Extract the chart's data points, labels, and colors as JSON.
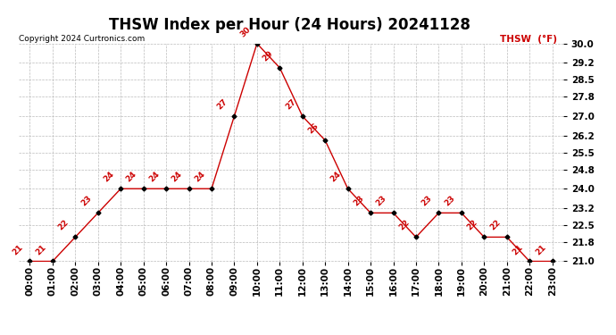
{
  "title": "THSW Index per Hour (24 Hours) 20241128",
  "copyright": "Copyright 2024 Curtronics.com",
  "legend_label": "THSW  (°F)",
  "hours": [
    "00:00",
    "01:00",
    "02:00",
    "03:00",
    "04:00",
    "05:00",
    "06:00",
    "07:00",
    "08:00",
    "09:00",
    "10:00",
    "11:00",
    "12:00",
    "13:00",
    "14:00",
    "15:00",
    "16:00",
    "17:00",
    "18:00",
    "19:00",
    "20:00",
    "21:00",
    "22:00",
    "23:00"
  ],
  "values": [
    21,
    21,
    22,
    23,
    24,
    24,
    24,
    24,
    24,
    27,
    30,
    29,
    27,
    26,
    24,
    23,
    23,
    22,
    23,
    23,
    22,
    22,
    21,
    21
  ],
  "line_color": "#cc0000",
  "marker_color": "#000000",
  "label_color": "#cc0000",
  "background_color": "#ffffff",
  "grid_color": "#bbbbbb",
  "title_color": "#000000",
  "copyright_color": "#000000",
  "legend_color": "#cc0000",
  "ylim_min": 21.0,
  "ylim_max": 30.0,
  "yticks": [
    21.0,
    21.8,
    22.5,
    23.2,
    24.0,
    24.8,
    25.5,
    26.2,
    27.0,
    27.8,
    28.5,
    29.2,
    30.0
  ],
  "title_fontsize": 12,
  "label_fontsize": 6.5,
  "tick_fontsize": 7.5,
  "copyright_fontsize": 6.5,
  "legend_fontsize": 7.5
}
